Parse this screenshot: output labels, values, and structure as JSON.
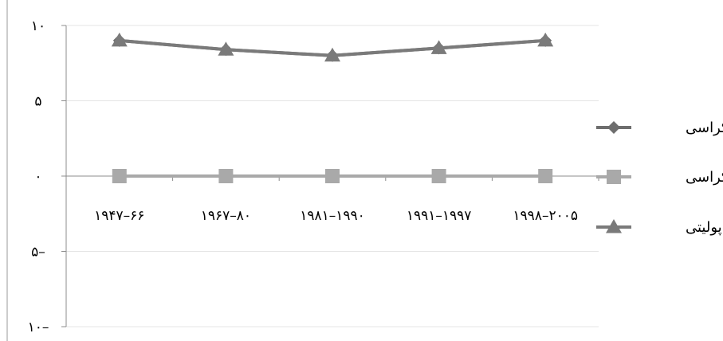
{
  "chart_data": {
    "type": "line",
    "title": "",
    "xlabel": "",
    "ylabel": "",
    "categories": [
      "۱۹۴۷–۶۶",
      "۱۹۶۷–۸۰",
      "۱۹۸۱–۱۹۹۰",
      "۱۹۹۱–۱۹۹۷",
      "۱۹۹۸–۲۰۰۵"
    ],
    "ylim": [
      -10,
      10
    ],
    "ytick_values": [
      10,
      5,
      0,
      -5,
      -10
    ],
    "ytick_labels": [
      "۱۰",
      "۵",
      "۰",
      "۵–",
      "۱۰–"
    ],
    "grid": "horizontal",
    "legend_position": "right",
    "series": [
      {
        "name": "دموکراسی",
        "values": [
          9.0,
          8.4,
          8.0,
          8.5,
          9.0
        ],
        "color": "#6e6e6e",
        "marker": "diamond"
      },
      {
        "name": "اتوکراسی",
        "values": [
          0,
          0,
          0,
          0,
          0
        ],
        "color": "#a9a9a9",
        "marker": "square"
      },
      {
        "name": "پولیتی",
        "values": [
          9.0,
          8.4,
          8.0,
          8.5,
          9.0
        ],
        "color": "#7a7a7a",
        "marker": "triangle"
      }
    ]
  }
}
